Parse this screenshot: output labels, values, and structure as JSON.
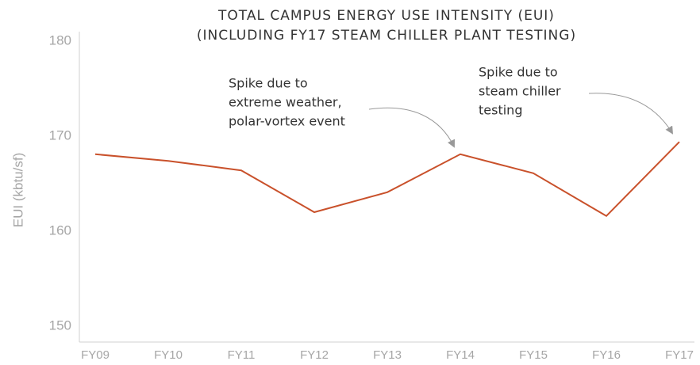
{
  "chart_data": {
    "type": "line",
    "title": [
      "TOTAL CAMPUS ENERGY USE INTENSITY (EUI)",
      "(INCLUDING FY17 STEAM CHILLER PLANT TESTING)"
    ],
    "y_label": "EUI (kbtu/sf)",
    "categories": [
      "FY09",
      "FY10",
      "FY11",
      "FY12",
      "FY13",
      "FY14",
      "FY15",
      "FY16",
      "FY17"
    ],
    "series": [
      {
        "name": "EUI",
        "color": "#c9512b",
        "values": [
          168.1,
          167.4,
          166.4,
          162,
          164.1,
          168.1,
          166.1,
          161.6,
          169.4
        ]
      }
    ],
    "ylim": [
      150,
      180
    ],
    "yticks": [
      150,
      160,
      170,
      180
    ],
    "grid": false,
    "annotations": [
      {
        "lines": [
          "Spike due to",
          "extreme weather,",
          "polar-vortex event"
        ]
      },
      {
        "lines": [
          "Spike due to",
          "steam chiller",
          "testing"
        ]
      }
    ]
  }
}
